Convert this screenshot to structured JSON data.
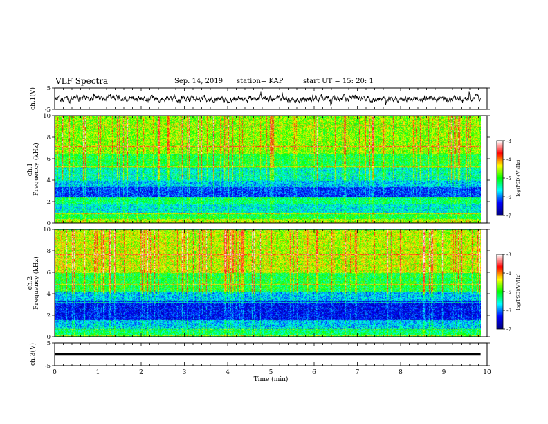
{
  "header": {
    "title": "VLF Spectra",
    "date": "Sep. 14, 2019",
    "station": "station= KAP",
    "start": "start  UT  =   15: 20: 1"
  },
  "chart_data": [
    {
      "type": "line",
      "name": "ch1-waveform",
      "ylabel": "ch.1(V)",
      "ylim": [
        -5,
        5
      ],
      "yticks": [
        "5",
        "-5"
      ],
      "xlim": [
        0,
        10
      ],
      "data_extent_min": 9.85,
      "description_level": "noisy trace centered near 0 V, range about -3 to 3 V"
    },
    {
      "type": "heatmap",
      "name": "ch1-spectrogram",
      "ylabel": "ch.1\nFrequency (kHz)",
      "ylim": [
        0,
        10
      ],
      "yticks": [
        "0",
        "2",
        "4",
        "6",
        "8",
        "10"
      ],
      "xlim": [
        0,
        10
      ],
      "data_extent_min": 9.85,
      "colorbar": {
        "label": "log(PSD)(V²/Hz)",
        "range": [
          -7,
          -3
        ],
        "ticks": [
          "-3",
          "-4",
          "-5",
          "-6",
          "-7"
        ]
      },
      "band_profile_kHz": [
        [
          0,
          0.4,
          -4.2
        ],
        [
          0.4,
          1.0,
          -4.8
        ],
        [
          1.0,
          1.8,
          -5.4
        ],
        [
          1.8,
          2.4,
          -5.0
        ],
        [
          2.4,
          3.4,
          -6.1
        ],
        [
          3.4,
          4.0,
          -5.6
        ],
        [
          4.0,
          5.2,
          -5.3
        ],
        [
          5.2,
          6.5,
          -4.8
        ],
        [
          6.5,
          10,
          -4.3
        ]
      ]
    },
    {
      "type": "heatmap",
      "name": "ch2-spectrogram",
      "ylabel": "ch.2\nFrequency (kHz)",
      "ylim": [
        0,
        10
      ],
      "yticks": [
        "0",
        "2",
        "4",
        "6",
        "8",
        "10"
      ],
      "xlim": [
        0,
        10
      ],
      "data_extent_min": 9.85,
      "colorbar": {
        "label": "log(PSD)(V²/Hz)",
        "range": [
          -7,
          -3
        ],
        "ticks": [
          "-3",
          "-4",
          "-5",
          "-6",
          "-7"
        ]
      },
      "band_profile_kHz": [
        [
          0,
          0.6,
          -5.0
        ],
        [
          0.6,
          1.6,
          -5.6
        ],
        [
          1.6,
          3.4,
          -6.3
        ],
        [
          3.4,
          4.2,
          -5.6
        ],
        [
          4.2,
          6.0,
          -4.8
        ],
        [
          6.0,
          10,
          -4.1
        ]
      ]
    },
    {
      "type": "line",
      "name": "ch3-waveform",
      "ylabel": "ch.3(V)",
      "ylim": [
        -5,
        5
      ],
      "yticks": [
        "5",
        "-5"
      ],
      "xlim": [
        0,
        10
      ],
      "data_extent_min": 9.85,
      "level": 0
    }
  ],
  "xaxis": {
    "label": "Time (min)",
    "ticks": [
      "0",
      "1",
      "2",
      "3",
      "4",
      "5",
      "6",
      "7",
      "8",
      "9",
      "10"
    ]
  },
  "colors": {
    "trace": "#000000",
    "axis": "#000000",
    "colormap": [
      "#000080",
      "#0000ff",
      "#00ffff",
      "#00ff00",
      "#ffff00",
      "#ff0000",
      "#ffffff"
    ]
  }
}
